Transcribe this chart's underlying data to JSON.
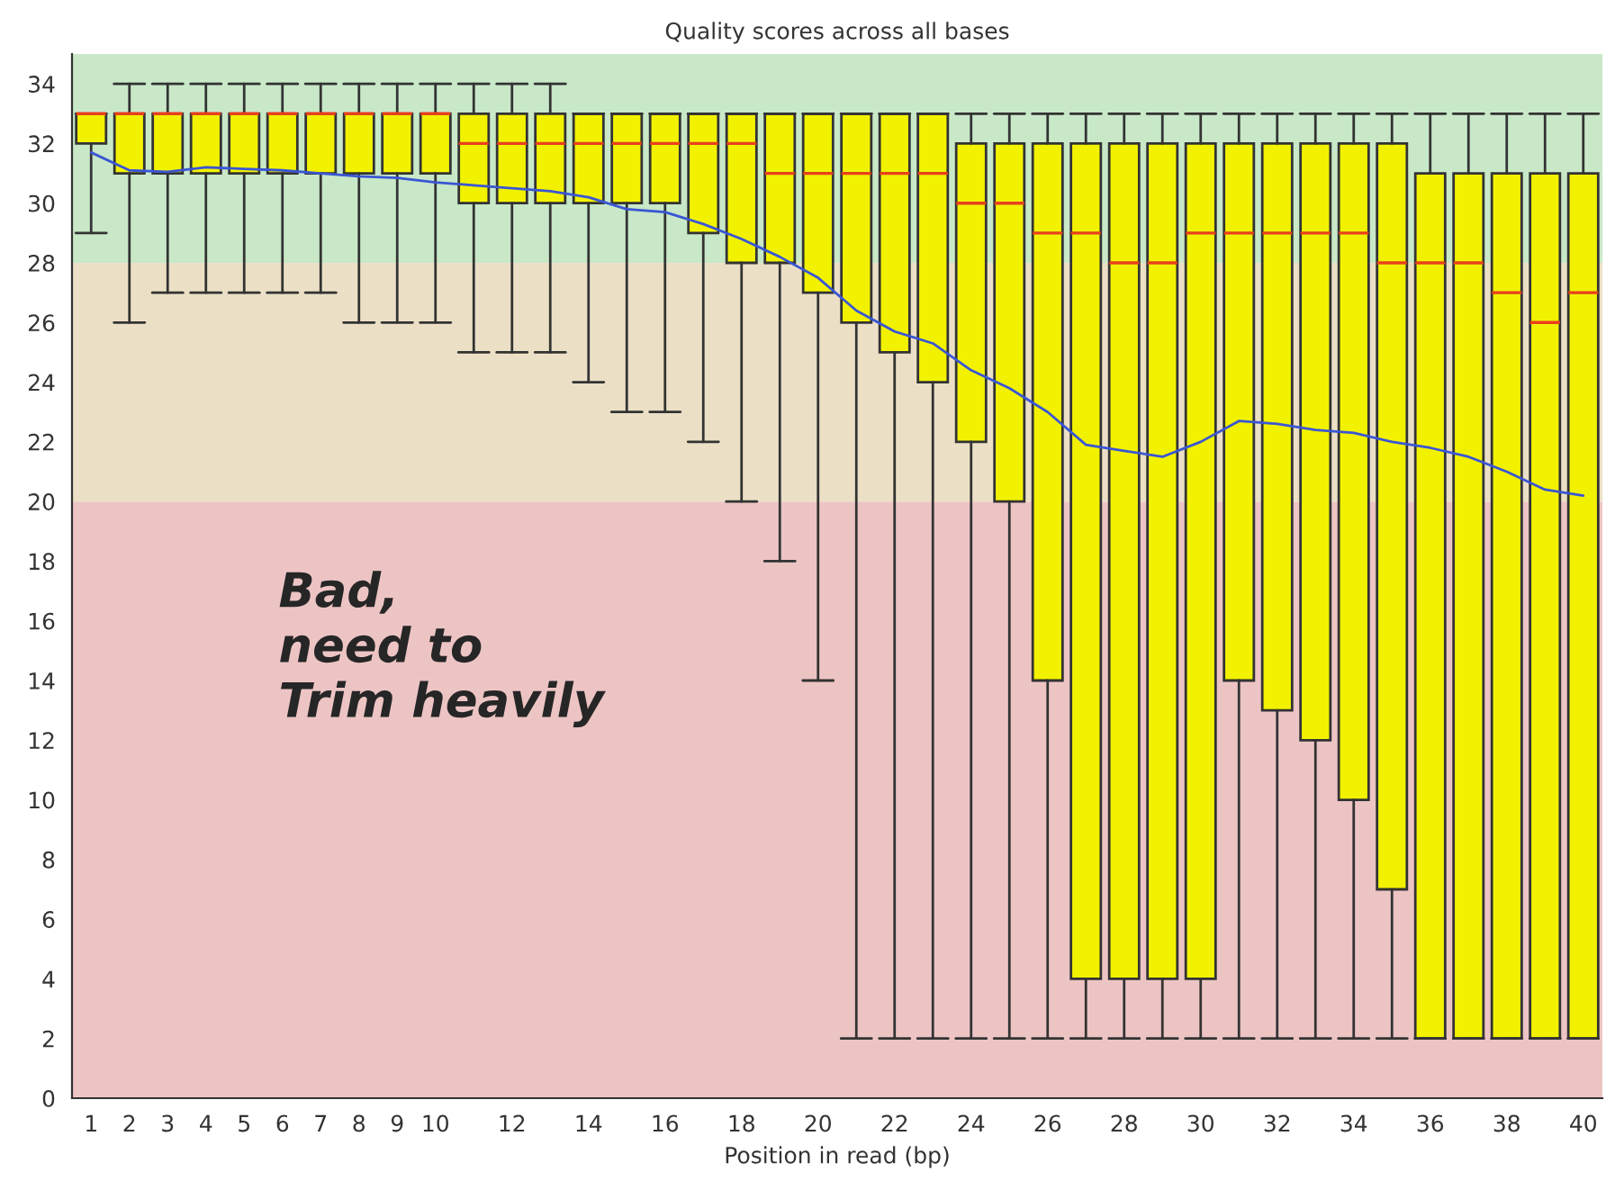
{
  "chart_data": {
    "type": "box",
    "title": "Quality scores across all bases",
    "xlabel": "Position in read (bp)",
    "categories": [
      "1",
      "2",
      "3",
      "4",
      "5",
      "6",
      "7",
      "8",
      "9",
      "10",
      null,
      "12",
      null,
      "14",
      null,
      "16",
      null,
      "18",
      null,
      "20",
      null,
      "22",
      null,
      "24",
      null,
      "26",
      null,
      "28",
      null,
      "30",
      null,
      "32",
      null,
      "34",
      null,
      "36",
      null,
      "38",
      null,
      "40"
    ],
    "ylim": [
      0,
      35
    ],
    "yticks": [
      0,
      2,
      4,
      6,
      8,
      10,
      12,
      14,
      16,
      18,
      20,
      22,
      24,
      26,
      28,
      30,
      32,
      34
    ],
    "grid": false,
    "bands": [
      {
        "axis": "y",
        "from": 0,
        "to": 20,
        "color": "#edc4c4"
      },
      {
        "axis": "y",
        "from": 20,
        "to": 28,
        "color": "#ebe0c6"
      },
      {
        "axis": "y",
        "from": 28,
        "to": 35,
        "color": "#c8e8c8"
      }
    ],
    "series": [
      {
        "type": "box",
        "color": "#f2f200",
        "boxes": [
          {
            "low": 29,
            "q1": 32,
            "median": 33,
            "q3": 33,
            "high": 33
          },
          {
            "low": 26,
            "q1": 31,
            "median": 33,
            "q3": 33,
            "high": 34
          },
          {
            "low": 27,
            "q1": 31,
            "median": 33,
            "q3": 33,
            "high": 34
          },
          {
            "low": 27,
            "q1": 31,
            "median": 33,
            "q3": 33,
            "high": 34
          },
          {
            "low": 27,
            "q1": 31,
            "median": 33,
            "q3": 33,
            "high": 34
          },
          {
            "low": 27,
            "q1": 31,
            "median": 33,
            "q3": 33,
            "high": 34
          },
          {
            "low": 27,
            "q1": 31,
            "median": 33,
            "q3": 33,
            "high": 34
          },
          {
            "low": 26,
            "q1": 31,
            "median": 33,
            "q3": 33,
            "high": 34
          },
          {
            "low": 26,
            "q1": 31,
            "median": 33,
            "q3": 33,
            "high": 34
          },
          {
            "low": 26,
            "q1": 31,
            "median": 33,
            "q3": 33,
            "high": 34
          },
          {
            "low": 25,
            "q1": 30,
            "median": 32,
            "q3": 33,
            "high": 34
          },
          {
            "low": 25,
            "q1": 30,
            "median": 32,
            "q3": 33,
            "high": 34
          },
          {
            "low": 25,
            "q1": 30,
            "median": 32,
            "q3": 33,
            "high": 34
          },
          {
            "low": 24,
            "q1": 30,
            "median": 32,
            "q3": 33,
            "high": 33
          },
          {
            "low": 23,
            "q1": 30,
            "median": 32,
            "q3": 33,
            "high": 33
          },
          {
            "low": 23,
            "q1": 30,
            "median": 32,
            "q3": 33,
            "high": 33
          },
          {
            "low": 22,
            "q1": 29,
            "median": 32,
            "q3": 33,
            "high": 33
          },
          {
            "low": 20,
            "q1": 28,
            "median": 32,
            "q3": 33,
            "high": 33
          },
          {
            "low": 18,
            "q1": 28,
            "median": 31,
            "q3": 33,
            "high": 33
          },
          {
            "low": 14,
            "q1": 27,
            "median": 31,
            "q3": 33,
            "high": 33
          },
          {
            "low": 2,
            "q1": 26,
            "median": 31,
            "q3": 33,
            "high": 33
          },
          {
            "low": 2,
            "q1": 25,
            "median": 31,
            "q3": 33,
            "high": 33
          },
          {
            "low": 2,
            "q1": 24,
            "median": 31,
            "q3": 33,
            "high": 33
          },
          {
            "low": 2,
            "q1": 22,
            "median": 30,
            "q3": 32,
            "high": 33
          },
          {
            "low": 2,
            "q1": 20,
            "median": 30,
            "q3": 32,
            "high": 33
          },
          {
            "low": 2,
            "q1": 14,
            "median": 29,
            "q3": 32,
            "high": 33
          },
          {
            "low": 2,
            "q1": 4,
            "median": 29,
            "q3": 32,
            "high": 33
          },
          {
            "low": 2,
            "q1": 4,
            "median": 28,
            "q3": 32,
            "high": 33
          },
          {
            "low": 2,
            "q1": 4,
            "median": 28,
            "q3": 32,
            "high": 33
          },
          {
            "low": 2,
            "q1": 4,
            "median": 29,
            "q3": 32,
            "high": 33
          },
          {
            "low": 2,
            "q1": 14,
            "median": 29,
            "q3": 32,
            "high": 33
          },
          {
            "low": 2,
            "q1": 13,
            "median": 29,
            "q3": 32,
            "high": 33
          },
          {
            "low": 2,
            "q1": 12,
            "median": 29,
            "q3": 32,
            "high": 33
          },
          {
            "low": 2,
            "q1": 10,
            "median": 29,
            "q3": 32,
            "high": 33
          },
          {
            "low": 2,
            "q1": 7,
            "median": 28,
            "q3": 32,
            "high": 33
          },
          {
            "low": 2,
            "q1": 2,
            "median": 28,
            "q3": 31,
            "high": 33
          },
          {
            "low": 2,
            "q1": 2,
            "median": 28,
            "q3": 31,
            "high": 33
          },
          {
            "low": 2,
            "q1": 2,
            "median": 27,
            "q3": 31,
            "high": 33
          },
          {
            "low": 2,
            "q1": 2,
            "median": 26,
            "q3": 31,
            "high": 33
          },
          {
            "low": 2,
            "q1": 2,
            "median": 27,
            "q3": 31,
            "high": 33
          }
        ]
      },
      {
        "type": "line",
        "color": "#3a56d4",
        "values": [
          31.7,
          31.1,
          31.05,
          31.2,
          31.15,
          31.1,
          31.0,
          30.9,
          30.85,
          30.7,
          30.6,
          30.5,
          30.4,
          30.2,
          29.8,
          29.7,
          29.3,
          28.8,
          28.2,
          27.5,
          26.4,
          25.7,
          25.3,
          24.4,
          23.8,
          23.0,
          21.9,
          21.7,
          21.5,
          22.0,
          22.7,
          22.6,
          22.4,
          22.3,
          22.0,
          21.8,
          21.5,
          21.0,
          20.4,
          20.2
        ]
      }
    ],
    "annotations": [
      "Bad,\nneed to\nTrim heavily"
    ]
  }
}
